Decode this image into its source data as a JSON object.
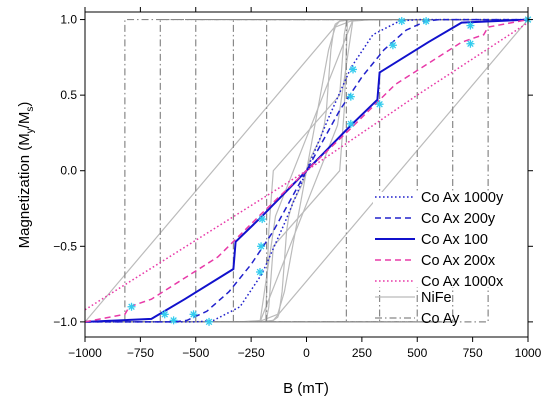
{
  "chart_data": {
    "type": "line",
    "title": "",
    "xlabel": "B (mT)",
    "ylabel_main": "Magnetization (M",
    "ylabel_sub1": "y",
    "ylabel_mid": "/M",
    "ylabel_sub2": "s",
    "ylabel_end": ")",
    "xlim": [
      -1000,
      1000
    ],
    "ylim": [
      -1.1,
      1.05
    ],
    "x_ticks": [
      -1000,
      -750,
      -500,
      -250,
      0,
      250,
      500,
      750,
      1000
    ],
    "x_tick_labels": [
      "−1000",
      "−750",
      "−500",
      "−250",
      "0",
      "250",
      "500",
      "750",
      "1000"
    ],
    "y_ticks": [
      -1.0,
      -0.5,
      0.0,
      0.5,
      1.0
    ],
    "y_tick_labels": [
      "−1.0",
      "−0.5",
      "0.0",
      "0.5",
      "1.0"
    ],
    "grid": false,
    "legend_position": "right",
    "series": [
      {
        "name": "Co Ax 1000y",
        "color": "#2222cc",
        "dash": "dotted",
        "width": 1.5,
        "x": [
          -1000,
          -500,
          -420,
          -300,
          -200,
          -100,
          0,
          100,
          200,
          300,
          420,
          500,
          1000
        ],
        "y": [
          -1.0,
          -1.0,
          -0.99,
          -0.9,
          -0.68,
          -0.35,
          0.0,
          0.35,
          0.68,
          0.9,
          0.99,
          1.0,
          1.0
        ]
      },
      {
        "name": "Co Ax 200y",
        "color": "#2222cc",
        "dash": "dashed",
        "width": 1.5,
        "x": [
          -1000,
          -600,
          -540,
          -450,
          -350,
          -250,
          -150,
          0,
          150,
          250,
          350,
          450,
          540,
          600,
          1000
        ],
        "y": [
          -1.0,
          -1.0,
          -0.99,
          -0.93,
          -0.8,
          -0.62,
          -0.4,
          0.0,
          0.4,
          0.62,
          0.8,
          0.93,
          0.99,
          1.0,
          1.0
        ]
      },
      {
        "name": "Co Ax 100",
        "color": "#1111cc",
        "dash": "solid",
        "width": 2,
        "x": [
          -1000,
          -700,
          -550,
          -330,
          -320,
          -200,
          0,
          200,
          320,
          330,
          550,
          700,
          1000
        ],
        "y": [
          -1.0,
          -0.98,
          -0.85,
          -0.65,
          -0.47,
          -0.3,
          0.0,
          0.3,
          0.47,
          0.65,
          0.85,
          0.98,
          1.0
        ]
      },
      {
        "name": "Co Ax 200x",
        "color": "#e83aa8",
        "dash": "dashed",
        "width": 1.5,
        "x": [
          -1000,
          -820,
          -800,
          -700,
          -400,
          -200,
          0,
          200,
          400,
          700,
          800,
          820,
          1000
        ],
        "y": [
          -1.0,
          -0.95,
          -0.9,
          -0.85,
          -0.57,
          -0.28,
          0.0,
          0.28,
          0.57,
          0.85,
          0.9,
          0.95,
          1.0
        ]
      },
      {
        "name": "Co Ax 1000x",
        "color": "#e83aa8",
        "dash": "dotted",
        "width": 1.5,
        "x": [
          -1000,
          -500,
          0,
          500,
          1000
        ],
        "y": [
          -0.92,
          -0.46,
          0.0,
          0.5,
          0.98
        ]
      }
    ],
    "background_series": [
      {
        "name": "NiFe",
        "color": "#bbbbbb",
        "dash": "solid",
        "width": 1.2,
        "x": [
          -1000,
          -300,
          -200,
          -150,
          -130,
          -125,
          -120,
          -110,
          -100,
          -90,
          -80,
          -70,
          -60,
          -50,
          -40,
          -30,
          -20,
          -10,
          0,
          50,
          100,
          130,
          200,
          300,
          1000
        ],
        "y": [
          -1.0,
          -1.0,
          -1.0,
          -0.99,
          -0.97,
          -0.95,
          -0.9,
          -0.8,
          -0.6,
          -0.4,
          -0.3,
          -0.25,
          -0.2,
          -0.18,
          -0.15,
          -0.12,
          -0.09,
          -0.05,
          0.0,
          0.4,
          0.8,
          0.95,
          0.99,
          1.0,
          1.0
        ],
        "loops": [
          {
            "x": [
              -1000,
              -185,
              -180,
              -170,
              -150,
              150,
              170,
              180,
              185,
              1000
            ],
            "y": [
              -1.0,
              -1.0,
              -0.8,
              -0.4,
              0.0,
              0.5,
              0.9,
              0.98,
              1.0,
              1.0
            ]
          },
          {
            "x": [
              -1000,
              -210,
              -140,
              210,
              1000
            ],
            "y": [
              -1.0,
              -1.0,
              -0.3,
              1.0,
              1.0
            ]
          },
          {
            "x": [
              -1000,
              150,
              200,
              1000
            ],
            "y": [
              -1.0,
              0.99,
              1.0,
              1.0
            ]
          }
        ]
      },
      {
        "name": "Co Ay",
        "color": "#888888",
        "dash": "dashdot",
        "width": 1.2,
        "verticals": [
          -820,
          -660,
          -500,
          -330,
          -180
        ],
        "top_y": 1.0,
        "bottom_y": -1.0
      }
    ],
    "markers": {
      "color": "#33ccee",
      "points": [
        {
          "x": -790,
          "y": -0.9
        },
        {
          "x": -640,
          "y": -0.95
        },
        {
          "x": -600,
          "y": -0.99
        },
        {
          "x": -510,
          "y": -0.95
        },
        {
          "x": -440,
          "y": -1.0
        },
        {
          "x": -210,
          "y": -0.67
        },
        {
          "x": -205,
          "y": -0.5
        },
        {
          "x": -200,
          "y": -0.32
        },
        {
          "x": 200,
          "y": 0.31
        },
        {
          "x": 200,
          "y": 0.49
        },
        {
          "x": 210,
          "y": 0.67
        },
        {
          "x": 330,
          "y": 0.44
        },
        {
          "x": 390,
          "y": 0.83
        },
        {
          "x": 430,
          "y": 0.99
        },
        {
          "x": 540,
          "y": 0.99
        },
        {
          "x": 740,
          "y": 0.84
        },
        {
          "x": 740,
          "y": 0.96
        },
        {
          "x": 1000,
          "y": 1.0
        }
      ]
    },
    "legend_top": [
      "Co Ax 1000y",
      "Co Ax 200y",
      "Co Ax 100",
      "Co Ax 200x",
      "Co Ax 1000x"
    ],
    "legend_bottom": [
      "NiFe",
      "Co Ay"
    ]
  }
}
